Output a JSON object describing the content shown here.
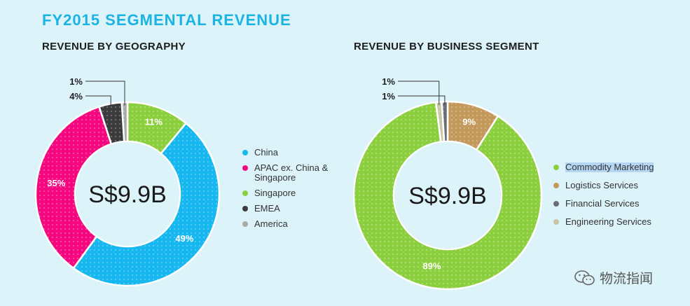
{
  "page": {
    "title": "FY2015 SEGMENTAL REVENUE",
    "watermark_text": "物流指闻",
    "watermark_icon": "wechat-icon"
  },
  "chart_data": [
    {
      "type": "pie",
      "subtype": "donut",
      "title": "REVENUE BY GEOGRAPHY",
      "center_label": "S$9.9B",
      "categories": [
        "Singapore",
        "China",
        "APAC ex. China & Singapore",
        "EMEA",
        "America"
      ],
      "values": [
        11,
        49,
        35,
        4,
        1
      ],
      "labels": [
        "11%",
        "49%",
        "35%",
        "4%",
        "1%"
      ],
      "colors": [
        "#8ccf3e",
        "#17b7ef",
        "#f5077f",
        "#3b3b3d",
        "#a9a9a9"
      ],
      "legend": [
        {
          "label": "China",
          "color": "#17b7ef"
        },
        {
          "label": "APAC ex. China & Singapore",
          "color": "#f5077f"
        },
        {
          "label": "Singapore",
          "color": "#8ccf3e"
        },
        {
          "label": "EMEA",
          "color": "#3b3b3d"
        },
        {
          "label": "America",
          "color": "#a9a9a9"
        }
      ],
      "legend_position": "right"
    },
    {
      "type": "pie",
      "subtype": "donut",
      "title": "REVENUE BY BUSINESS SEGMENT",
      "center_label": "S$9.9B",
      "categories": [
        "Logistics Services",
        "Commodity Marketing",
        "Engineering Services",
        "Financial Services"
      ],
      "values": [
        9,
        89,
        1,
        1
      ],
      "labels": [
        "9%",
        "89%",
        "1%",
        "1%"
      ],
      "colors": [
        "#c39a5b",
        "#8ccf3e",
        "#c9c6a6",
        "#6a6d73"
      ],
      "legend": [
        {
          "label": "Commodity Marketing",
          "color": "#8ccf3e",
          "highlighted": true
        },
        {
          "label": "Logistics Services",
          "color": "#c39a5b"
        },
        {
          "label": "Financial Services",
          "color": "#6a6d73"
        },
        {
          "label": "Engineering Services",
          "color": "#c9c6a6"
        }
      ],
      "legend_position": "right"
    }
  ]
}
